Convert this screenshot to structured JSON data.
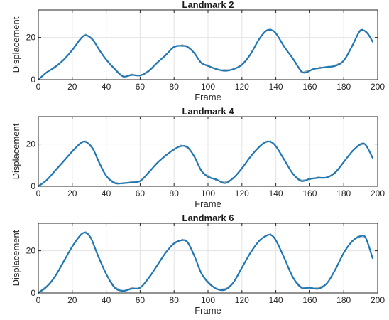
{
  "chart_data": [
    {
      "type": "line",
      "title": "Landmark 2",
      "xlabel": "Frame",
      "ylabel": "Displacement",
      "xlim": [
        0,
        200
      ],
      "ylim": [
        0,
        33
      ],
      "xticks": [
        "0",
        "20",
        "40",
        "60",
        "80",
        "100",
        "120",
        "140",
        "160",
        "180",
        "200"
      ],
      "yticks": [
        "0",
        "20"
      ],
      "grid": true,
      "colors": {
        "smoothed": "#1f77b4",
        "raw": "#a8a8a8"
      },
      "series": [
        {
          "x": [
            0,
            5,
            10,
            15,
            20,
            25,
            28,
            32,
            36,
            40,
            45,
            50,
            55,
            60,
            65,
            70,
            75,
            80,
            85,
            88,
            92,
            96,
            100,
            105,
            110,
            115,
            120,
            125,
            130,
            134,
            137,
            140,
            145,
            150,
            155,
            158,
            162,
            166,
            170,
            175,
            180,
            185,
            189,
            191,
            194,
            197
          ],
          "smoothed": [
            0,
            3.5,
            6,
            9.5,
            14,
            19.5,
            21,
            19,
            14,
            9.5,
            5,
            1.5,
            2.2,
            2,
            4,
            8,
            11.5,
            15.5,
            16,
            15.5,
            12.5,
            8,
            6.5,
            5,
            4.2,
            5,
            7,
            12,
            19,
            23,
            23.5,
            22,
            15.5,
            10,
            4,
            3.5,
            5,
            5.5,
            6,
            6.5,
            9,
            16,
            22.5,
            23.5,
            22,
            18
          ],
          "raw": [
            0.4,
            3.2,
            6.6,
            9,
            14.5,
            19,
            21.6,
            18.6,
            14.4,
            9.1,
            5.6,
            1.2,
            2.7,
            1.6,
            4.5,
            7.6,
            12,
            15.2,
            16.6,
            15.1,
            12.9,
            7.6,
            7,
            4.6,
            4.8,
            4.6,
            7.5,
            11.5,
            19.4,
            22.6,
            24.1,
            21.6,
            16,
            9.6,
            3.2,
            4.2,
            4.6,
            6,
            5.6,
            7,
            8.6,
            16.5,
            22.1,
            24,
            21.5,
            18.4
          ]
        }
      ]
    },
    {
      "type": "line",
      "title": "Landmark 4",
      "xlabel": "Frame",
      "ylabel": "Displacement",
      "xlim": [
        0,
        200
      ],
      "ylim": [
        0,
        33
      ],
      "xticks": [
        "0",
        "20",
        "40",
        "60",
        "80",
        "100",
        "120",
        "140",
        "160",
        "180",
        "200"
      ],
      "yticks": [
        "0",
        "20"
      ],
      "grid": true,
      "colors": {
        "smoothed": "#1f77b4",
        "raw": "#a8a8a8"
      },
      "series": [
        {
          "x": [
            0,
            5,
            10,
            15,
            20,
            25,
            28,
            32,
            36,
            40,
            45,
            50,
            55,
            60,
            65,
            70,
            75,
            80,
            84,
            88,
            92,
            96,
            100,
            105,
            110,
            115,
            120,
            125,
            130,
            134,
            137,
            140,
            145,
            150,
            155,
            160,
            165,
            170,
            175,
            180,
            185,
            190,
            193,
            197
          ],
          "smoothed": [
            0,
            3,
            7.5,
            12,
            16.5,
            20.5,
            21,
            18,
            11,
            5,
            1.5,
            1.5,
            1.8,
            2.5,
            6.5,
            11,
            14.5,
            17.5,
            19,
            18.5,
            14,
            7.5,
            4.5,
            3.2,
            1.5,
            4,
            8.5,
            14,
            18.5,
            21,
            21,
            19,
            12.5,
            6,
            2.5,
            3.5,
            4,
            4.2,
            6.5,
            11.5,
            16.5,
            20,
            19.5,
            13.5
          ],
          "raw": [
            0.4,
            2.8,
            7.9,
            11.6,
            17,
            20.1,
            21.6,
            17.5,
            11.5,
            4.6,
            2,
            1.1,
            2.3,
            2.1,
            7,
            10.6,
            15,
            17.1,
            19.6,
            18,
            14.5,
            7.1,
            5.2,
            2.6,
            2.1,
            3.6,
            9,
            13.6,
            19,
            20.6,
            21.6,
            18.6,
            13,
            5.6,
            3,
            3.1,
            4.5,
            3.8,
            7,
            11.1,
            17,
            19.6,
            20,
            13.9
          ]
        }
      ]
    },
    {
      "type": "line",
      "title": "Landmark 6",
      "xlabel": "Frame",
      "ylabel": "Displacement",
      "xlim": [
        0,
        200
      ],
      "ylim": [
        0,
        33
      ],
      "xticks": [
        "0",
        "20",
        "40",
        "60",
        "80",
        "100",
        "120",
        "140",
        "160",
        "180",
        "200"
      ],
      "yticks": [
        "0",
        "20"
      ],
      "grid": true,
      "colors": {
        "smoothed": "#1f77b4",
        "raw": "#a8a8a8"
      },
      "series": [
        {
          "x": [
            0,
            5,
            10,
            15,
            20,
            25,
            28,
            31,
            35,
            40,
            45,
            50,
            55,
            60,
            65,
            70,
            75,
            80,
            85,
            88,
            92,
            96,
            100,
            105,
            110,
            115,
            120,
            125,
            130,
            134,
            137,
            140,
            145,
            150,
            155,
            160,
            165,
            170,
            175,
            180,
            185,
            190,
            193,
            197
          ],
          "smoothed": [
            0,
            3,
            8,
            15,
            22,
            27.5,
            28.5,
            26,
            18,
            9,
            2.5,
            1,
            2,
            2.5,
            7,
            13,
            19,
            23.5,
            25,
            24,
            17.5,
            9.5,
            5,
            2,
            1.5,
            5,
            12,
            19,
            24.5,
            27,
            27.5,
            25,
            16.5,
            7.5,
            2.5,
            2.5,
            2,
            4.5,
            11,
            19,
            24.5,
            27,
            26,
            16.5
          ],
          "raw": [
            0.4,
            3.4,
            7.6,
            15.5,
            21.6,
            27.9,
            29.1,
            25.6,
            18.5,
            8.6,
            3,
            0.6,
            2.6,
            2,
            7.5,
            12.6,
            19.5,
            23.1,
            25.6,
            23.6,
            18,
            9.1,
            5.6,
            1.6,
            2.1,
            4.6,
            12.5,
            18.6,
            25,
            26.6,
            28.1,
            24.6,
            17,
            7.1,
            3,
            2.1,
            2.6,
            4.1,
            11.5,
            18.6,
            25,
            26.6,
            26.5,
            16.9
          ]
        }
      ]
    }
  ]
}
